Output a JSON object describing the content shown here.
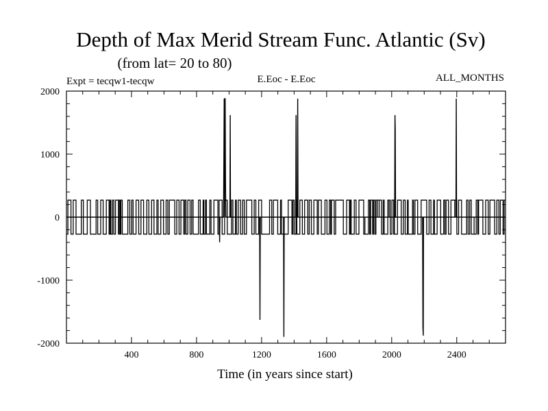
{
  "chart_data": {
    "type": "line",
    "title": "Depth of Max Merid Stream Func. Atlantic (Sv)",
    "subtitle": "(from lat= 20 to 80)",
    "expt_label": "Expt = tecqw1-tecqw",
    "variable_label": "E.Eoc - E.Eoc",
    "period_label": "ALL_MONTHS",
    "xlabel": "Time (in years since start)",
    "ylabel": "",
    "xlim": [
      0,
      2700
    ],
    "ylim": [
      -2000,
      2000
    ],
    "x_ticks": [
      400,
      800,
      1200,
      1600,
      2000,
      2400
    ],
    "y_ticks": [
      2000,
      1000,
      0,
      -1000,
      -2000
    ],
    "noise_band": [
      -270,
      270
    ],
    "series": [
      {
        "name": "",
        "x": [
          0,
          940,
          942,
          944,
          966,
          968,
          970,
          972,
          974,
          976,
          978,
          980,
          1005,
          1007,
          1009,
          1188,
          1190,
          1192,
          1335,
          1337,
          1339,
          1410,
          1412,
          1414,
          1420,
          1422,
          1424,
          2018,
          2020,
          2022,
          2024,
          2026,
          2190,
          2192,
          2194,
          2196,
          2198,
          2395,
          2397,
          2399,
          2700
        ],
        "y": [
          0,
          0,
          -400,
          0,
          0,
          900,
          1880,
          0,
          1880,
          1880,
          600,
          0,
          0,
          1620,
          0,
          0,
          -1630,
          0,
          0,
          -1900,
          0,
          0,
          1620,
          0,
          0,
          1880,
          0,
          0,
          1620,
          1400,
          0,
          0,
          0,
          -1750,
          -1880,
          0,
          0,
          0,
          1880,
          0,
          0
        ]
      }
    ]
  }
}
